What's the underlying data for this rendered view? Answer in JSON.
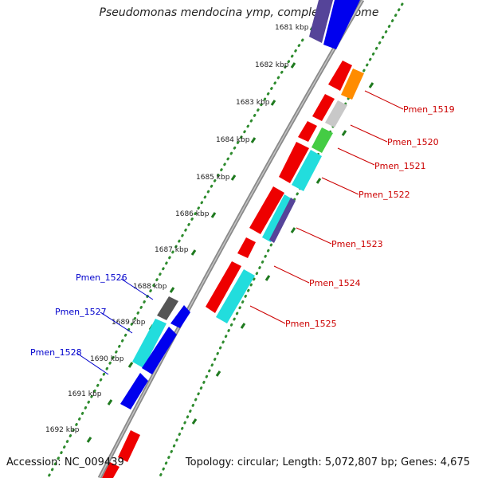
{
  "title": "Pseudomonas mendocina ymp, complete genome",
  "accession": "Accession: NC_009439",
  "summary": "Topology: circular; Length: 5,072,807 bp; Genes: 4,675",
  "ticks": [
    "1681 kbp",
    "1682 kbp",
    "1683 kbp",
    "1684 kbp",
    "1685 kbp",
    "1686 kbp",
    "1687 kbp",
    "1688 kbp",
    "1689 kbp",
    "1690 kbp",
    "1691 kbp",
    "1692 kbp"
  ],
  "gene_labels": [
    {
      "text": "Pmen_1519",
      "color": "#cc0000"
    },
    {
      "text": "Pmen_1520",
      "color": "#cc0000"
    },
    {
      "text": "Pmen_1521",
      "color": "#cc0000"
    },
    {
      "text": "Pmen_1522",
      "color": "#cc0000"
    },
    {
      "text": "Pmen_1523",
      "color": "#cc0000"
    },
    {
      "text": "Pmen_1524",
      "color": "#cc0000"
    },
    {
      "text": "Pmen_1525",
      "color": "#cc0000"
    },
    {
      "text": "Pmen_1526",
      "color": "#0000cc"
    },
    {
      "text": "Pmen_1527",
      "color": "#0000cc"
    },
    {
      "text": "Pmen_1528",
      "color": "#0000cc"
    }
  ],
  "colors": {
    "backbone": "#8a8a8a",
    "dots": "#2e8b2e",
    "tick": "#1f7a1f",
    "red": "#ee0000",
    "blue": "#0000ee",
    "cyan": "#22dddd",
    "gray": "#555555",
    "orange": "#ff8c00",
    "lightgray": "#c8c8c8",
    "green": "#44cc44",
    "purple": "#554499"
  }
}
